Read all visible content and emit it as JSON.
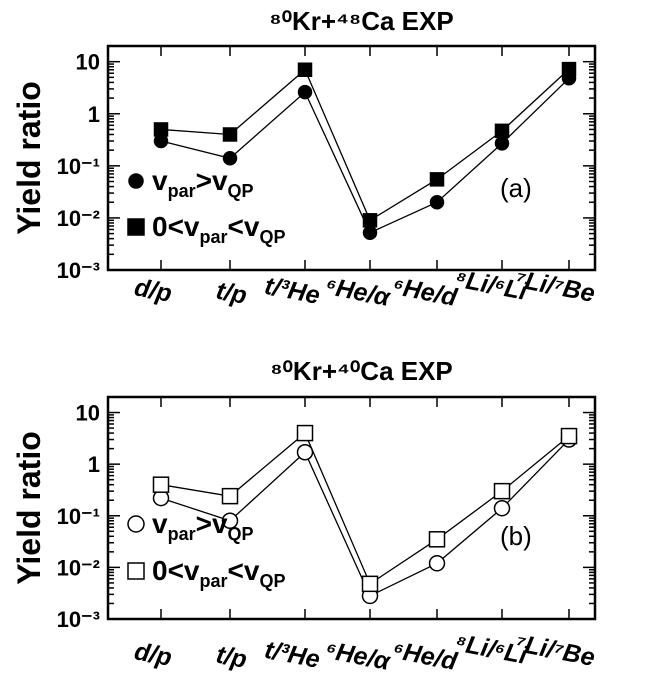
{
  "chart_data": [
    {
      "type": "scatter",
      "title": "⁸⁰Kr+⁴⁸Ca EXP",
      "ylabel": "Yield ratio",
      "yscale": "log",
      "ylim": [
        0.001,
        20
      ],
      "yticks": [
        "10⁻³",
        "10⁻²",
        "10⁻¹",
        "1",
        "10"
      ],
      "categories": [
        "d/p",
        "t/p",
        "t/³He",
        "⁶He/α",
        "⁶He/d",
        "⁸Li/⁶Li",
        "⁷Li/⁷Be"
      ],
      "panel_label": "(a)",
      "series": [
        {
          "name": "v_par>v_QP",
          "legend_main": "v",
          "legend_sub1": "par",
          "legend_mid": ">v",
          "legend_sub2": "QP",
          "marker": "filled-circle",
          "values": [
            0.3,
            0.14,
            2.6,
            0.0052,
            0.02,
            0.27,
            4.8
          ]
        },
        {
          "name": "0<v_par<v_QP",
          "legend_main": "0<v",
          "legend_sub1": "par",
          "legend_mid": "<v",
          "legend_sub2": "QP",
          "marker": "filled-square",
          "values": [
            0.5,
            0.4,
            7.0,
            0.009,
            0.055,
            0.47,
            7.2
          ]
        }
      ]
    },
    {
      "type": "scatter",
      "title": "⁸⁰Kr+⁴⁰Ca EXP",
      "ylabel": "Yield ratio",
      "yscale": "log",
      "ylim": [
        0.001,
        20
      ],
      "yticks": [
        "10⁻³",
        "10⁻²",
        "10⁻¹",
        "1",
        "10"
      ],
      "categories": [
        "d/p",
        "t/p",
        "t/³He",
        "⁶He/α",
        "⁶He/d",
        "⁸Li/⁶Li",
        "⁷Li/⁷Be"
      ],
      "panel_label": "(b)",
      "series": [
        {
          "name": "v_par>v_QP",
          "legend_main": "v",
          "legend_sub1": "par",
          "legend_mid": ">v",
          "legend_sub2": "QP",
          "marker": "open-circle",
          "values": [
            0.22,
            0.08,
            1.7,
            0.0028,
            0.012,
            0.14,
            3.0
          ]
        },
        {
          "name": "0<v_par<v_QP",
          "legend_main": "0<v",
          "legend_sub1": "par",
          "legend_mid": "<v",
          "legend_sub2": "QP",
          "marker": "open-square",
          "values": [
            0.4,
            0.24,
            4.0,
            0.0048,
            0.035,
            0.3,
            3.5
          ]
        }
      ]
    }
  ]
}
